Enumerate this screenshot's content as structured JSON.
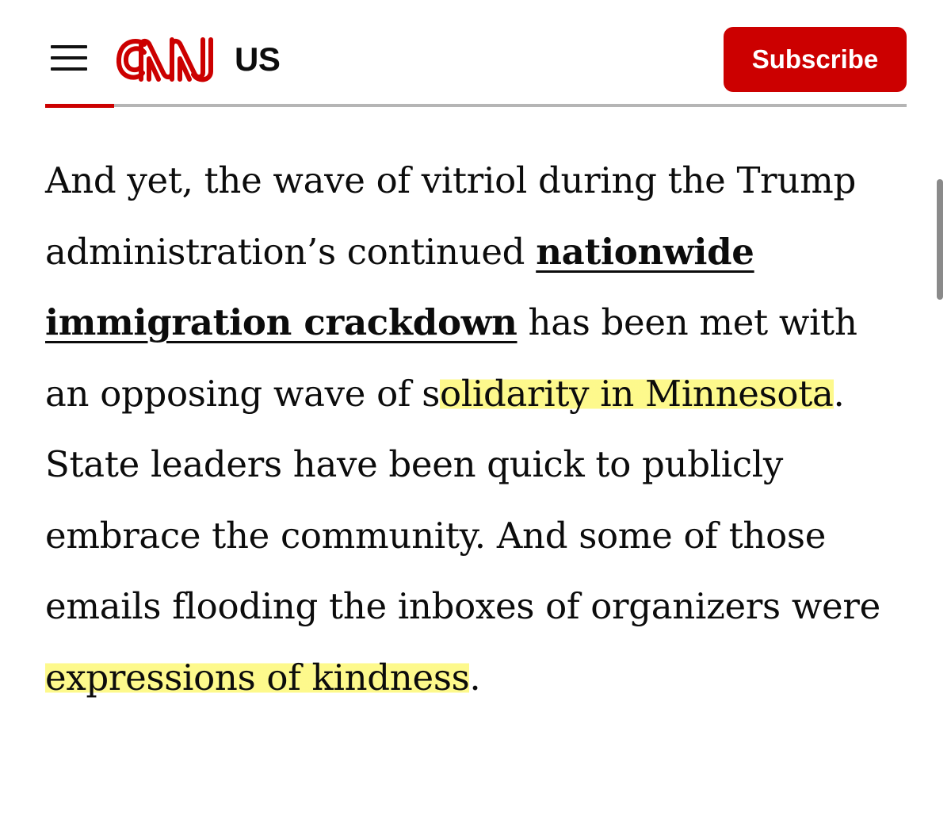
{
  "header": {
    "logo_text": "CNN",
    "edition_label": "US",
    "subscribe_label": "Subscribe",
    "brand_color": "#cc0000",
    "reading_progress": 0.08
  },
  "article": {
    "seg_1": "And yet, the wave of vitriol during the Trump administration’s continued ",
    "link_text": "nationwide immigration crackdown",
    "seg_2": " has been met with an opposing wave of s",
    "highlight_1": "olidarity in Minnesota",
    "seg_3": ". State leaders have been quick to publicly embrace the community. And some of those emails flooding the inboxes of organizers were ",
    "highlight_2": "expressions of kindness",
    "seg_4": "."
  },
  "icons": {
    "menu": "hamburger-menu-icon"
  },
  "colors": {
    "highlight": "#fdf878",
    "text": "#0c0c0c"
  }
}
